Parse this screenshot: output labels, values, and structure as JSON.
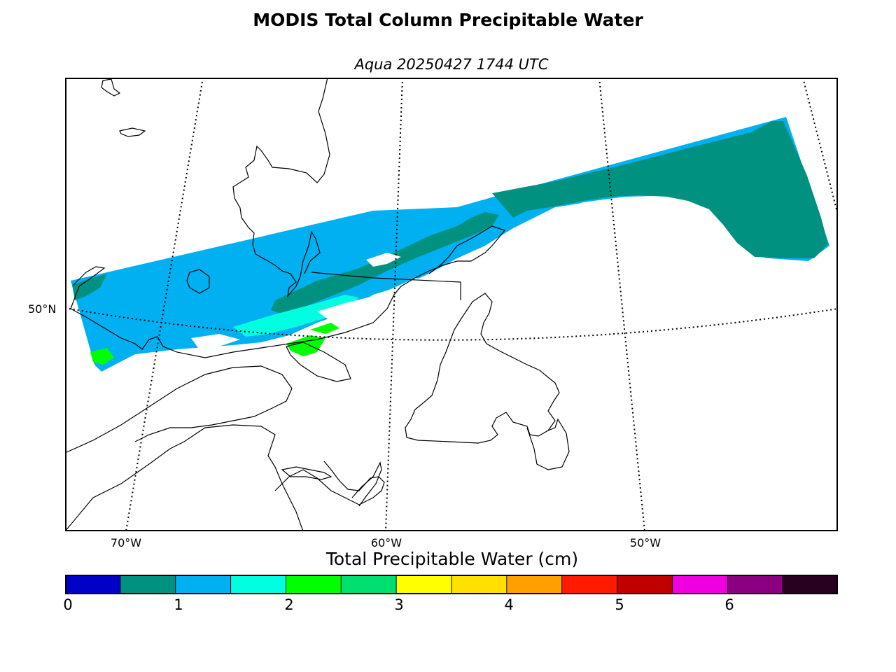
{
  "title": "MODIS Total Column Precipitable Water",
  "subtitle": "Aqua 20250427 1744 UTC",
  "map": {
    "lon_labels": [
      "70°W",
      "60°W",
      "50°W"
    ],
    "lat_labels": [
      "50°N"
    ],
    "swath_colors": {
      "low": "#009180",
      "mid": "#00b0f0",
      "high": "#00ffe0",
      "peak": "#00ff00"
    }
  },
  "colorbar": {
    "label": "Total Precipitable Water (cm)",
    "ticks": [
      "0",
      "1",
      "2",
      "3",
      "4",
      "5",
      "6"
    ],
    "colors": [
      "#0000c8",
      "#009180",
      "#00b0f0",
      "#00ffe0",
      "#00ff00",
      "#00e070",
      "#ffff00",
      "#ffe000",
      "#ffa000",
      "#ff1a00",
      "#c00000",
      "#f000e0",
      "#8a0080",
      "#280020"
    ],
    "vmin": 0,
    "vmax": 7
  }
}
